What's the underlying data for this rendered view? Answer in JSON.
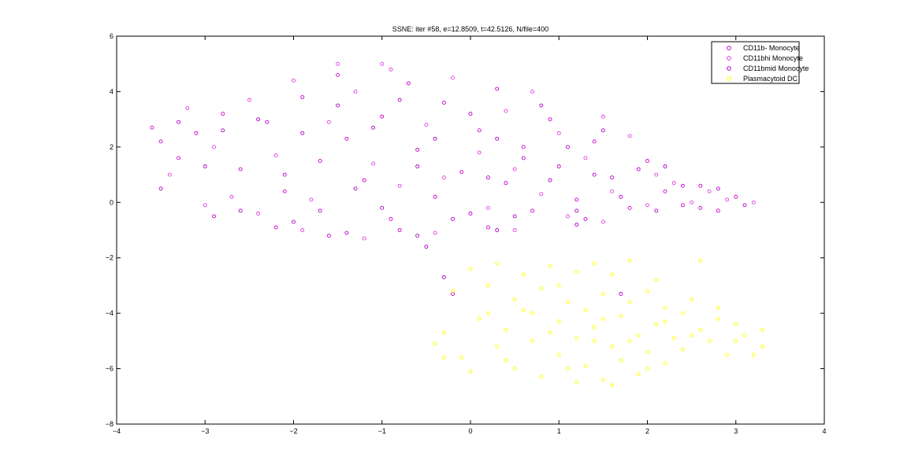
{
  "chart_data": {
    "type": "scatter",
    "title": "SSNE: iter #58, e=12.8509, t=42.5126, N/file=400",
    "xlabel": "",
    "ylabel": "",
    "xlim": [
      -4,
      4
    ],
    "ylim": [
      -8,
      6
    ],
    "x_ticks": [
      -4,
      -3,
      -2,
      -1,
      0,
      1,
      2,
      3,
      4
    ],
    "y_ticks": [
      -8,
      -6,
      -4,
      -2,
      0,
      2,
      4,
      6
    ],
    "x_tick_labels": [
      "−4",
      "−3",
      "−2",
      "−1",
      "0",
      "1",
      "2",
      "3",
      "4"
    ],
    "y_tick_labels": [
      "−8",
      "−6",
      "−4",
      "−2",
      "0",
      "2",
      "4",
      "6"
    ],
    "grid": false,
    "legend_position": "top-right",
    "marker": "circle-open",
    "series": [
      {
        "name": "CD11b- Monocyte",
        "color": "#cc00cc",
        "points": [
          [
            -3.6,
            2.7
          ],
          [
            -3.5,
            2.2
          ],
          [
            -3.3,
            1.6
          ],
          [
            -3.1,
            2.5
          ],
          [
            -2.8,
            3.2
          ],
          [
            -2.6,
            1.2
          ],
          [
            -2.3,
            2.9
          ],
          [
            -2.1,
            0.4
          ],
          [
            -1.9,
            3.8
          ],
          [
            -1.7,
            1.5
          ],
          [
            -1.5,
            4.6
          ],
          [
            -1.4,
            2.3
          ],
          [
            -1.2,
            0.8
          ],
          [
            -1.0,
            3.1
          ],
          [
            -0.9,
            -0.6
          ],
          [
            -0.7,
            4.3
          ],
          [
            -0.6,
            1.9
          ],
          [
            -0.4,
            0.2
          ],
          [
            -0.3,
            3.6
          ],
          [
            -0.1,
            1.1
          ],
          [
            0.0,
            -0.4
          ],
          [
            0.1,
            2.6
          ],
          [
            0.3,
            4.1
          ],
          [
            0.4,
            0.7
          ],
          [
            0.6,
            2.0
          ],
          [
            0.7,
            -0.3
          ],
          [
            0.9,
            3.0
          ],
          [
            1.0,
            1.3
          ],
          [
            1.2,
            0.1
          ],
          [
            1.4,
            2.2
          ],
          [
            1.6,
            0.9
          ],
          [
            1.8,
            -0.2
          ],
          [
            2.0,
            1.5
          ],
          [
            2.2,
            0.4
          ],
          [
            2.4,
            -0.1
          ],
          [
            2.6,
            0.6
          ],
          [
            2.8,
            -0.3
          ],
          [
            3.0,
            0.2
          ],
          [
            -2.9,
            -0.5
          ],
          [
            -2.2,
            -0.9
          ],
          [
            -1.6,
            -1.2
          ],
          [
            -0.8,
            -1.0
          ],
          [
            0.2,
            -0.9
          ],
          [
            1.3,
            -0.6
          ]
        ]
      },
      {
        "name": "CD11bhi Monocyte",
        "color": "#e040e0",
        "points": [
          [
            -3.4,
            1.0
          ],
          [
            -3.2,
            3.4
          ],
          [
            -2.9,
            2.0
          ],
          [
            -2.7,
            0.2
          ],
          [
            -2.5,
            3.7
          ],
          [
            -2.2,
            1.7
          ],
          [
            -2.0,
            4.4
          ],
          [
            -1.8,
            0.1
          ],
          [
            -1.6,
            2.9
          ],
          [
            -1.3,
            4.0
          ],
          [
            -1.1,
            1.4
          ],
          [
            -0.9,
            4.8
          ],
          [
            -0.8,
            0.6
          ],
          [
            -0.5,
            2.8
          ],
          [
            -0.3,
            0.9
          ],
          [
            -0.2,
            4.5
          ],
          [
            0.1,
            1.8
          ],
          [
            0.2,
            -0.2
          ],
          [
            0.4,
            3.3
          ],
          [
            0.5,
            1.2
          ],
          [
            0.7,
            4.0
          ],
          [
            0.8,
            0.3
          ],
          [
            1.0,
            2.5
          ],
          [
            1.1,
            -0.5
          ],
          [
            1.3,
            1.6
          ],
          [
            1.5,
            3.1
          ],
          [
            1.6,
            0.4
          ],
          [
            1.8,
            2.4
          ],
          [
            2.0,
            -0.1
          ],
          [
            2.1,
            1.0
          ],
          [
            2.3,
            0.7
          ],
          [
            2.5,
            0.0
          ],
          [
            2.7,
            0.4
          ],
          [
            2.9,
            0.1
          ],
          [
            3.2,
            0.0
          ],
          [
            -3.0,
            -0.1
          ],
          [
            -2.4,
            -0.4
          ],
          [
            -1.9,
            -1.0
          ],
          [
            -1.2,
            -1.3
          ],
          [
            -0.4,
            -1.1
          ],
          [
            0.5,
            -1.0
          ],
          [
            1.5,
            -0.7
          ],
          [
            -1.5,
            5.0
          ],
          [
            -1.0,
            5.0
          ]
        ]
      },
      {
        "name": "CD11bmid Monocyte",
        "color": "#b000c8",
        "points": [
          [
            -3.5,
            0.5
          ],
          [
            -3.3,
            2.9
          ],
          [
            -3.0,
            1.3
          ],
          [
            -2.8,
            2.6
          ],
          [
            -2.6,
            -0.3
          ],
          [
            -2.4,
            3.0
          ],
          [
            -2.1,
            1.0
          ],
          [
            -1.9,
            2.5
          ],
          [
            -1.7,
            -0.3
          ],
          [
            -1.5,
            3.5
          ],
          [
            -1.3,
            0.5
          ],
          [
            -1.1,
            2.7
          ],
          [
            -1.0,
            -0.2
          ],
          [
            -0.8,
            3.7
          ],
          [
            -0.6,
            1.3
          ],
          [
            -0.4,
            2.3
          ],
          [
            -0.2,
            -0.6
          ],
          [
            0.0,
            3.2
          ],
          [
            0.2,
            0.9
          ],
          [
            0.3,
            2.3
          ],
          [
            0.5,
            -0.5
          ],
          [
            0.6,
            1.6
          ],
          [
            0.8,
            3.5
          ],
          [
            0.9,
            0.8
          ],
          [
            1.1,
            2.0
          ],
          [
            1.2,
            -0.3
          ],
          [
            1.4,
            1.0
          ],
          [
            1.5,
            2.6
          ],
          [
            1.7,
            0.2
          ],
          [
            1.9,
            1.2
          ],
          [
            2.1,
            -0.3
          ],
          [
            2.2,
            1.3
          ],
          [
            2.4,
            0.6
          ],
          [
            2.6,
            -0.2
          ],
          [
            2.8,
            0.5
          ],
          [
            3.1,
            -0.1
          ],
          [
            -2.0,
            -0.7
          ],
          [
            -1.4,
            -1.1
          ],
          [
            -0.6,
            -1.2
          ],
          [
            0.3,
            -1.0
          ],
          [
            1.2,
            -0.8
          ],
          [
            -0.5,
            -1.6
          ],
          [
            -0.3,
            -2.7
          ],
          [
            -0.2,
            -3.3
          ],
          [
            1.7,
            -3.3
          ]
        ]
      },
      {
        "name": "Plasmacytoid DC",
        "color": "#ffff00",
        "points": [
          [
            -0.4,
            -5.1
          ],
          [
            -0.3,
            -4.7
          ],
          [
            -0.2,
            -3.2
          ],
          [
            -0.1,
            -5.6
          ],
          [
            0.0,
            -2.4
          ],
          [
            0.0,
            -6.1
          ],
          [
            0.1,
            -4.2
          ],
          [
            0.2,
            -3.0
          ],
          [
            0.3,
            -5.2
          ],
          [
            0.3,
            -2.2
          ],
          [
            0.4,
            -4.6
          ],
          [
            0.5,
            -6.0
          ],
          [
            0.5,
            -3.5
          ],
          [
            0.6,
            -2.6
          ],
          [
            0.7,
            -5.0
          ],
          [
            0.7,
            -4.0
          ],
          [
            0.8,
            -6.3
          ],
          [
            0.8,
            -3.1
          ],
          [
            0.9,
            -2.3
          ],
          [
            1.0,
            -5.5
          ],
          [
            1.0,
            -4.3
          ],
          [
            1.1,
            -3.6
          ],
          [
            1.1,
            -6.0
          ],
          [
            1.2,
            -2.5
          ],
          [
            1.2,
            -4.9
          ],
          [
            1.3,
            -3.9
          ],
          [
            1.3,
            -5.9
          ],
          [
            1.4,
            -2.2
          ],
          [
            1.4,
            -4.5
          ],
          [
            1.5,
            -6.4
          ],
          [
            1.5,
            -3.3
          ],
          [
            1.6,
            -5.2
          ],
          [
            1.6,
            -2.6
          ],
          [
            1.7,
            -4.1
          ],
          [
            1.7,
            -5.7
          ],
          [
            1.8,
            -3.6
          ],
          [
            1.8,
            -2.1
          ],
          [
            1.9,
            -4.8
          ],
          [
            1.9,
            -6.2
          ],
          [
            2.0,
            -3.2
          ],
          [
            2.0,
            -5.4
          ],
          [
            2.1,
            -4.4
          ],
          [
            2.1,
            -2.8
          ],
          [
            2.2,
            -5.8
          ],
          [
            2.2,
            -3.8
          ],
          [
            2.3,
            -4.9
          ],
          [
            2.4,
            -4.0
          ],
          [
            2.4,
            -5.3
          ],
          [
            2.5,
            -3.5
          ],
          [
            2.6,
            -4.6
          ],
          [
            2.6,
            -2.1
          ],
          [
            2.7,
            -5.0
          ],
          [
            2.8,
            -4.2
          ],
          [
            2.8,
            -3.8
          ],
          [
            2.9,
            -5.5
          ],
          [
            3.0,
            -4.4
          ],
          [
            3.0,
            -5.0
          ],
          [
            3.1,
            -4.8
          ],
          [
            3.2,
            -5.5
          ],
          [
            3.3,
            -4.6
          ],
          [
            3.3,
            -5.2
          ],
          [
            0.6,
            -3.9
          ],
          [
            1.0,
            -3.0
          ],
          [
            1.4,
            -5.0
          ],
          [
            1.8,
            -5.0
          ],
          [
            2.2,
            -4.3
          ],
          [
            0.4,
            -5.7
          ],
          [
            1.2,
            -6.5
          ],
          [
            1.6,
            -6.6
          ],
          [
            2.0,
            -6.0
          ],
          [
            -0.3,
            -5.6
          ],
          [
            0.2,
            -4.0
          ],
          [
            0.9,
            -4.7
          ],
          [
            1.5,
            -4.2
          ],
          [
            2.5,
            -4.8
          ]
        ]
      }
    ]
  }
}
